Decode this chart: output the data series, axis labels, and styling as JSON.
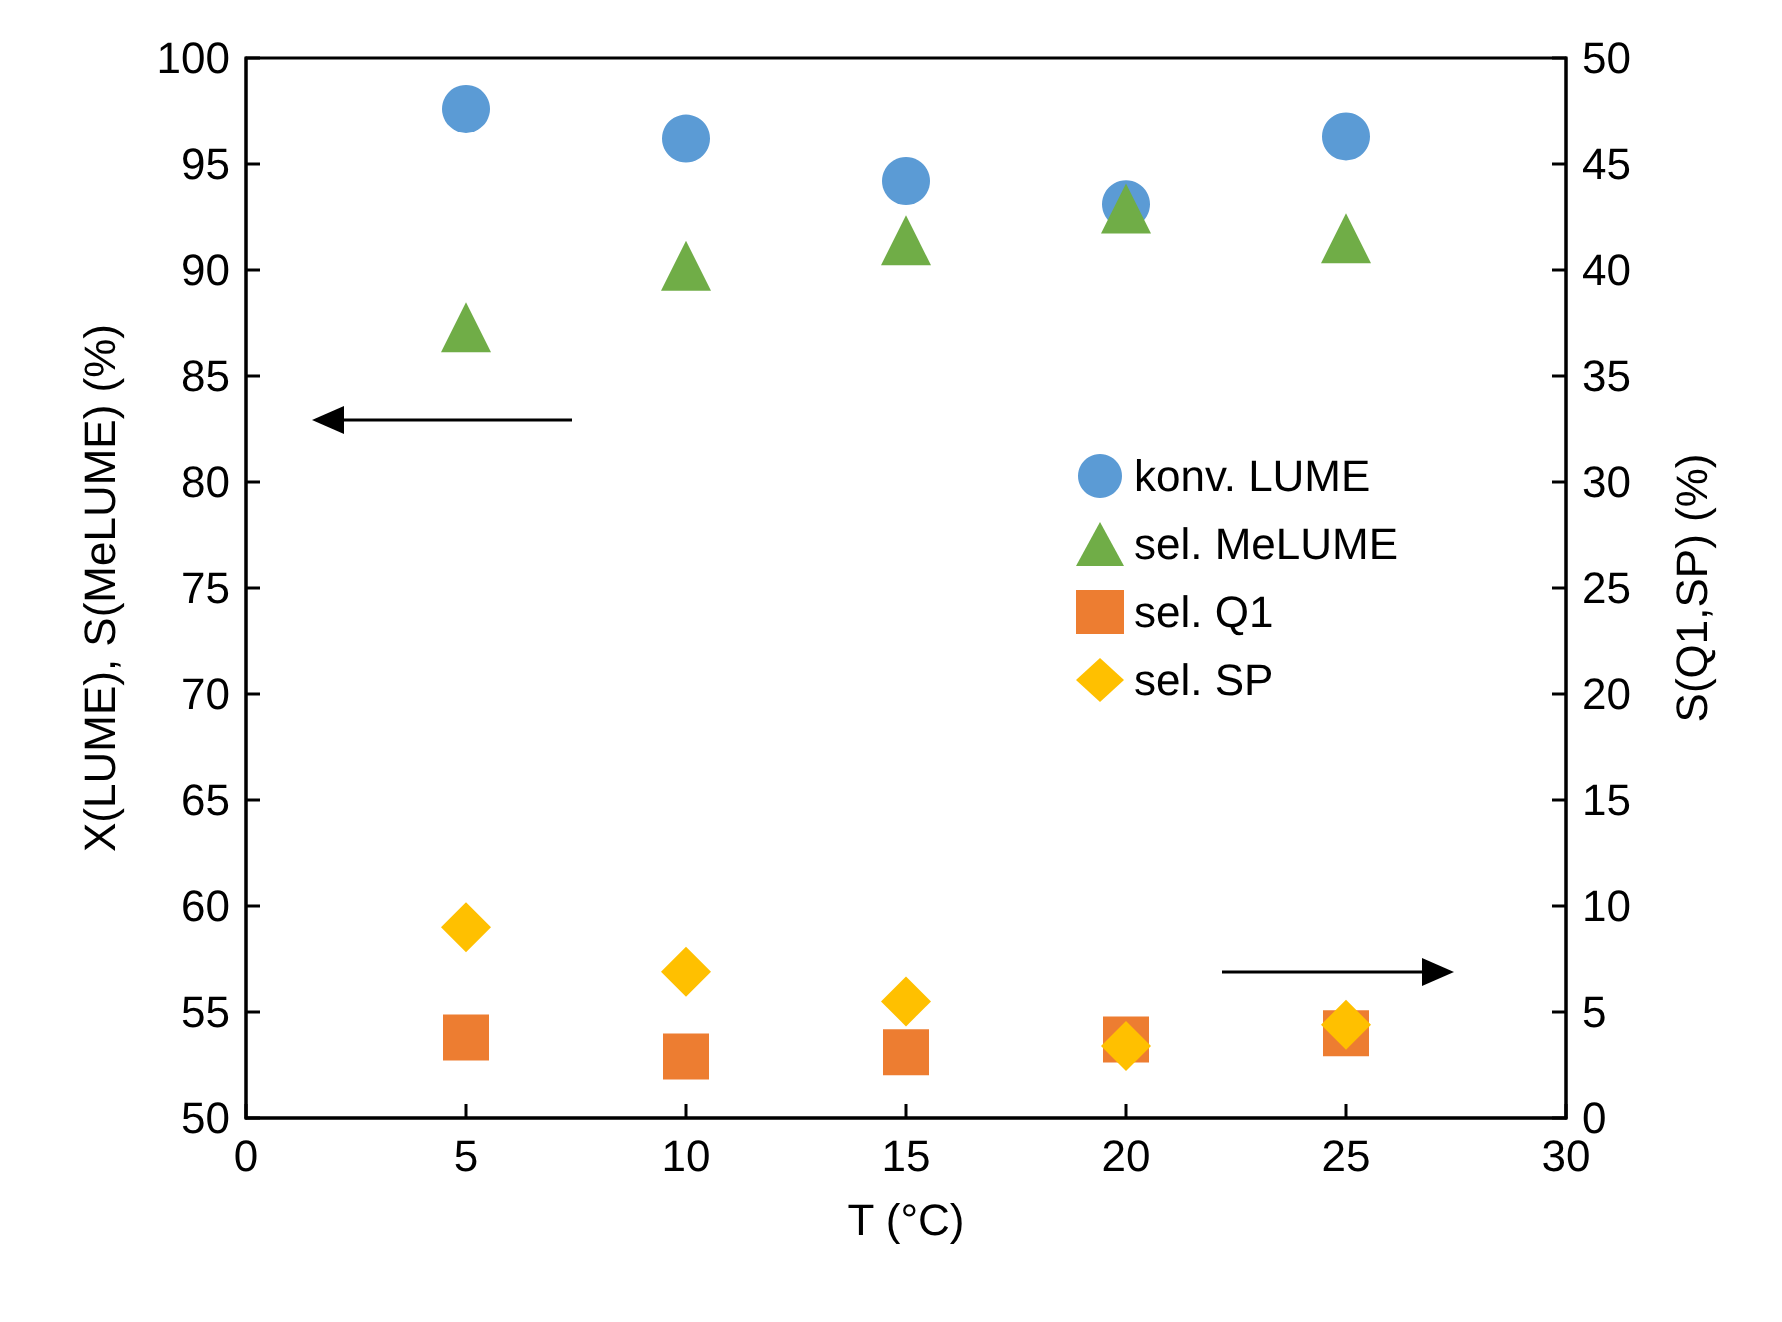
{
  "chart_data": {
    "type": "scatter",
    "xlabel": "T (°C)",
    "ylabel": "X(LUME), S(MeLUME) (%)",
    "y2label": "S(Q1,SP) (%)",
    "x": [
      5,
      10,
      15,
      20,
      25
    ],
    "series": [
      {
        "name": "konv. LUME",
        "color": "#5b9bd5",
        "marker": "circle",
        "values": [
          97.6,
          96.2,
          94.2,
          93.1,
          96.3
        ]
      },
      {
        "name": "sel. MeLUME",
        "color": "#70ad47",
        "marker": "triangle",
        "values": [
          87.3,
          90.2,
          91.4,
          92.9,
          91.5
        ]
      },
      {
        "name": "sel. Q1",
        "color": "#ed7d31",
        "marker": "square",
        "axis": "y2",
        "values": [
          3.8,
          2.9,
          3.1,
          3.7,
          4.0
        ]
      },
      {
        "name": "sel. SP",
        "color": "#ffc000",
        "marker": "diamond",
        "axis": "y2",
        "values": [
          9.0,
          6.9,
          5.5,
          3.4,
          4.4
        ]
      }
    ],
    "xlim": [
      0,
      30
    ],
    "xticks": [
      0,
      5,
      10,
      15,
      20,
      25,
      30
    ],
    "ylim": [
      50,
      100
    ],
    "yticks": [
      50,
      55,
      60,
      65,
      70,
      75,
      80,
      85,
      90,
      95,
      100
    ],
    "y2lim": [
      0,
      50
    ],
    "y2ticks": [
      0,
      5,
      10,
      15,
      20,
      25,
      30,
      35,
      40,
      45,
      50
    ],
    "grid": false,
    "legend": "right"
  }
}
